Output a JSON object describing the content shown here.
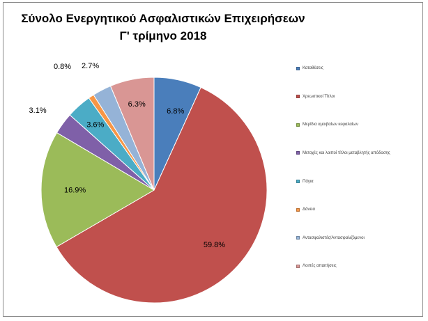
{
  "chart_data": {
    "type": "pie",
    "title": "Σύνολο Ενεργητικού Ασφαλιστικών Επιχειρήσεων",
    "subtitle": "Γ' τρίμηνο 2018",
    "legend_position": "right",
    "slices": [
      {
        "label": "Καταθέσεις",
        "value": 6.8,
        "display": "6.8%",
        "color": "#4a7ebb"
      },
      {
        "label": "Χρεωστικοί Τίτλοι",
        "value": 59.8,
        "display": "59.8%",
        "color": "#c0504d"
      },
      {
        "label": "Μερίδια αμοιβαίων κεφαλαίων",
        "value": 16.9,
        "display": "16.9%",
        "color": "#9bbb59"
      },
      {
        "label": "Μετοχές και λοιποί τίτλοι μεταβλητής απόδοσης",
        "value": 3.1,
        "display": "3.1%",
        "color": "#7f60a8"
      },
      {
        "label": "Πάγια",
        "value": 3.6,
        "display": "3.6%",
        "color": "#4bacc6"
      },
      {
        "label": "Δάνεια",
        "value": 0.8,
        "display": "0.8%",
        "color": "#f79646"
      },
      {
        "label": "Αντασφαλιστές/Αντασφαλιζόμενοι",
        "value": 2.7,
        "display": "2.7%",
        "color": "#95b3d7"
      },
      {
        "label": "Λοιπές απαιτήσεις",
        "value": 6.3,
        "display": "6.3%",
        "color": "#d99694"
      }
    ]
  }
}
